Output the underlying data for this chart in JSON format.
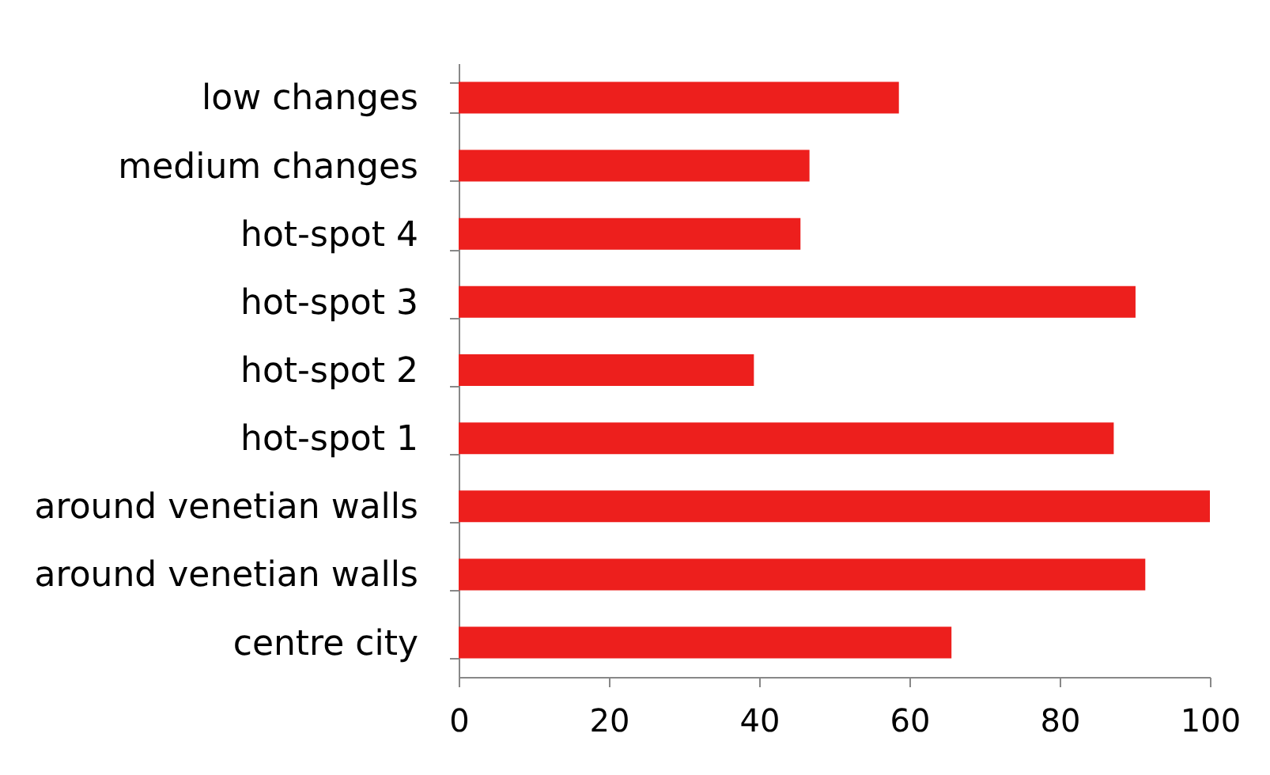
{
  "chart_data": {
    "type": "bar",
    "orientation": "horizontal",
    "categories": [
      "low changes",
      "medium changes",
      "hot-spot 4",
      "hot-spot 3",
      "hot-spot 2",
      "hot-spot 1",
      "around venetian walls",
      "around venetian walls",
      "centre city"
    ],
    "values": [
      58.6,
      46.7,
      45.5,
      90.1,
      39.3,
      87.2,
      100,
      91.4,
      65.6
    ],
    "color": "#ed1f1d",
    "xlim": [
      0,
      100
    ],
    "xticks": [
      0,
      20,
      40,
      60,
      80,
      100
    ],
    "grid": false
  }
}
